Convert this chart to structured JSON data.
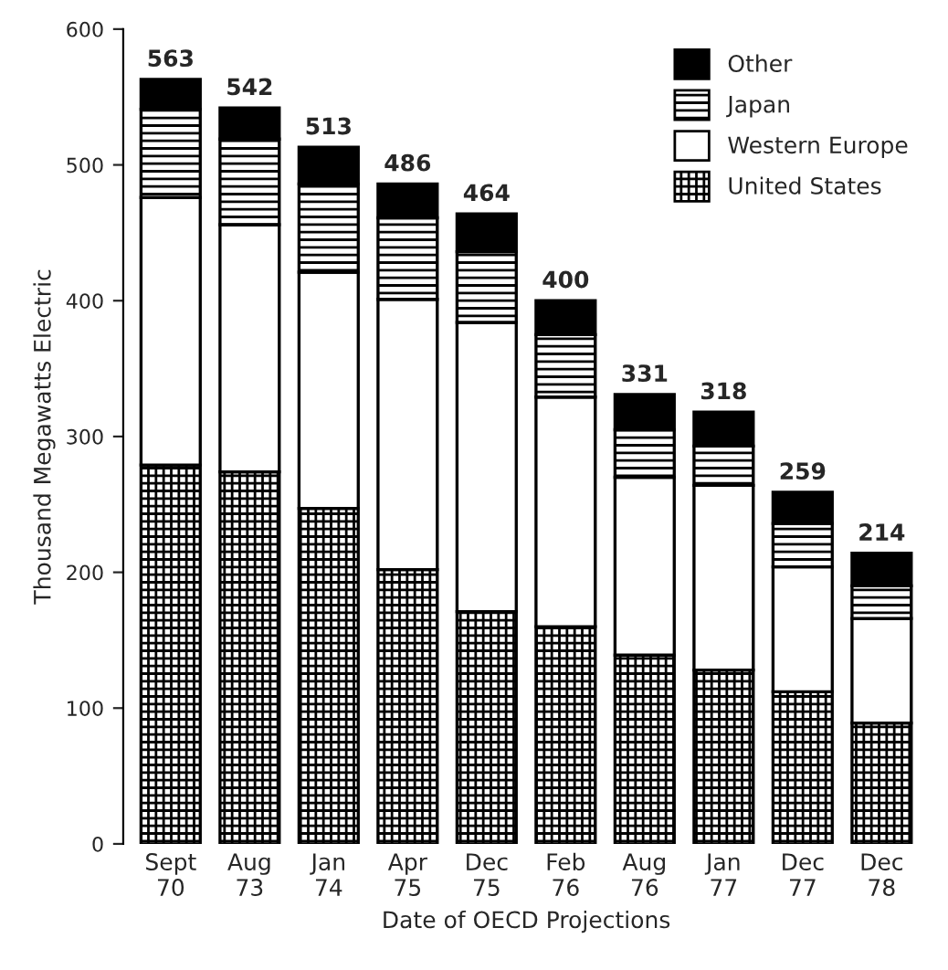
{
  "chart_data": {
    "type": "bar",
    "stacked": true,
    "xlabel": "Date of OECD Projections",
    "ylabel": "Thousand Megawatts Electric",
    "categories": [
      "Sept\n70",
      "Aug\n73",
      "Jan\n74",
      "Apr\n75",
      "Dec\n75",
      "Feb\n76",
      "Aug\n76",
      "Jan\n77",
      "Dec\n77",
      "Dec\n78"
    ],
    "series": [
      {
        "name": "United States",
        "color": "#000000",
        "values": [
          279,
          274,
          247,
          202,
          171,
          160,
          139,
          128,
          112,
          89
        ]
      },
      {
        "name": "Western Europe",
        "color": "#ffffff",
        "values": [
          197,
          182,
          174,
          199,
          213,
          169,
          131,
          136,
          92,
          77
        ]
      },
      {
        "name": "Japan",
        "color": "#000000",
        "values": [
          65,
          63,
          65,
          60,
          52,
          46,
          35,
          29,
          32,
          24
        ]
      },
      {
        "name": "Other",
        "color": "#000000",
        "values": [
          22,
          23,
          27,
          25,
          28,
          25,
          26,
          25,
          23,
          24
        ]
      }
    ],
    "totals": [
      "563",
      "542",
      "513",
      "486",
      "464",
      "400",
      "331",
      "318",
      "259",
      "214"
    ],
    "ylim": [
      0,
      600
    ],
    "yticks": [
      0,
      100,
      200,
      300,
      400,
      500,
      600
    ],
    "legend": "top right",
    "grid": false
  }
}
